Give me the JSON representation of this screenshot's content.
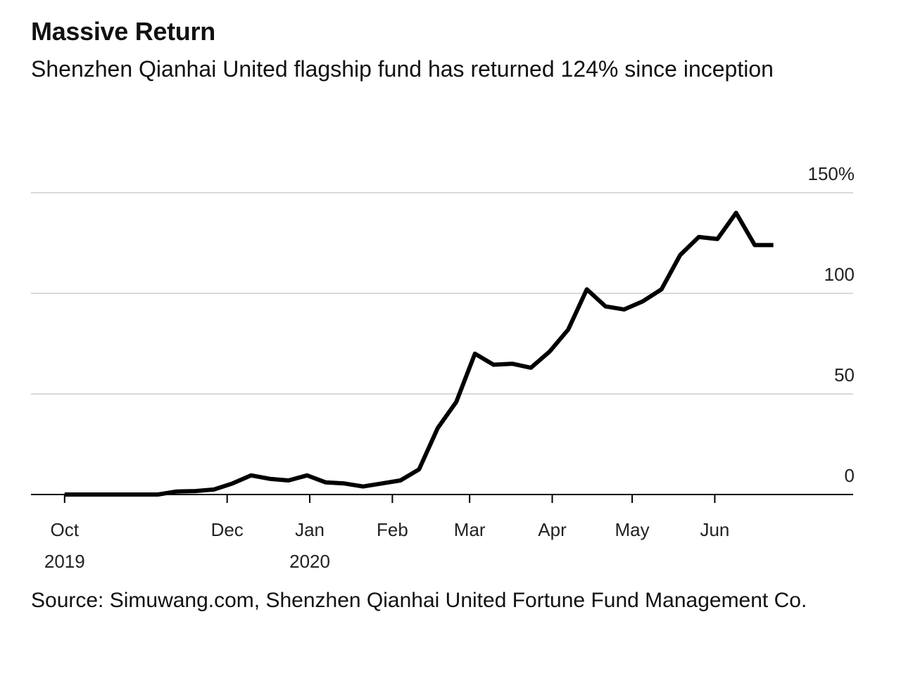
{
  "header": {
    "title": "Massive Return",
    "subtitle": "Shenzhen Qianhai United flagship fund has returned 124% since inception"
  },
  "footer": {
    "source": "Source: Simuwang.com, Shenzhen Qianhai United Fortune Fund Management Co."
  },
  "chart_data": {
    "type": "line",
    "title": "Massive Return",
    "subtitle": "Shenzhen Qianhai United flagship fund has returned 124% since inception",
    "y_unit": "%",
    "ylim": [
      0,
      150
    ],
    "y_ticks": [
      {
        "value": 150,
        "label": "150%"
      },
      {
        "value": 100,
        "label": "100"
      },
      {
        "value": 50,
        "label": "50"
      },
      {
        "value": 0,
        "label": "0"
      }
    ],
    "xlim": [
      "2019-09-30",
      "2020-07-15"
    ],
    "x_ticks": [
      {
        "date": "2019-10-01",
        "label": "Oct",
        "sublabel": "2019"
      },
      {
        "date": "2019-12-01",
        "label": "Dec",
        "sublabel": ""
      },
      {
        "date": "2020-01-01",
        "label": "Jan",
        "sublabel": "2020"
      },
      {
        "date": "2020-02-01",
        "label": "Feb",
        "sublabel": ""
      },
      {
        "date": "2020-03-01",
        "label": "Mar",
        "sublabel": ""
      },
      {
        "date": "2020-04-01",
        "label": "Apr",
        "sublabel": ""
      },
      {
        "date": "2020-05-01",
        "label": "May",
        "sublabel": ""
      },
      {
        "date": "2020-06-01",
        "label": "Jun",
        "sublabel": ""
      }
    ],
    "grid": true,
    "line_color": "#000000",
    "grid_color": "#d9d9d9",
    "series": [
      {
        "points": [
          {
            "x": "2019-10-01",
            "y": 0
          },
          {
            "x": "2019-10-08",
            "y": 0
          },
          {
            "x": "2019-10-15",
            "y": 0
          },
          {
            "x": "2019-10-22",
            "y": 0
          },
          {
            "x": "2019-10-29",
            "y": 0
          },
          {
            "x": "2019-11-05",
            "y": 0
          },
          {
            "x": "2019-11-12",
            "y": 1.5
          },
          {
            "x": "2019-11-19",
            "y": 1.7
          },
          {
            "x": "2019-11-26",
            "y": 2.5
          },
          {
            "x": "2019-12-03",
            "y": 5.5
          },
          {
            "x": "2019-12-10",
            "y": 9.5
          },
          {
            "x": "2019-12-17",
            "y": 7.8
          },
          {
            "x": "2019-12-24",
            "y": 7.0
          },
          {
            "x": "2019-12-31",
            "y": 9.5
          },
          {
            "x": "2020-01-07",
            "y": 6.0
          },
          {
            "x": "2020-01-14",
            "y": 5.5
          },
          {
            "x": "2020-01-21",
            "y": 4.0
          },
          {
            "x": "2020-01-28",
            "y": 5.5
          },
          {
            "x": "2020-02-04",
            "y": 7.0
          },
          {
            "x": "2020-02-11",
            "y": 12.5
          },
          {
            "x": "2020-02-18",
            "y": 33.0
          },
          {
            "x": "2020-02-25",
            "y": 46.0
          },
          {
            "x": "2020-03-03",
            "y": 70.0
          },
          {
            "x": "2020-03-10",
            "y": 64.5
          },
          {
            "x": "2020-03-17",
            "y": 65.0
          },
          {
            "x": "2020-03-24",
            "y": 63.0
          },
          {
            "x": "2020-03-31",
            "y": 71.0
          },
          {
            "x": "2020-04-07",
            "y": 82.0
          },
          {
            "x": "2020-04-14",
            "y": 102.0
          },
          {
            "x": "2020-04-21",
            "y": 93.5
          },
          {
            "x": "2020-04-28",
            "y": 92.0
          },
          {
            "x": "2020-05-05",
            "y": 96.0
          },
          {
            "x": "2020-05-12",
            "y": 102.0
          },
          {
            "x": "2020-05-19",
            "y": 119.0
          },
          {
            "x": "2020-05-26",
            "y": 128.0
          },
          {
            "x": "2020-06-02",
            "y": 127.0
          },
          {
            "x": "2020-06-09",
            "y": 140.0
          },
          {
            "x": "2020-06-16",
            "y": 124.0
          },
          {
            "x": "2020-06-23",
            "y": 124.0
          }
        ]
      }
    ]
  }
}
